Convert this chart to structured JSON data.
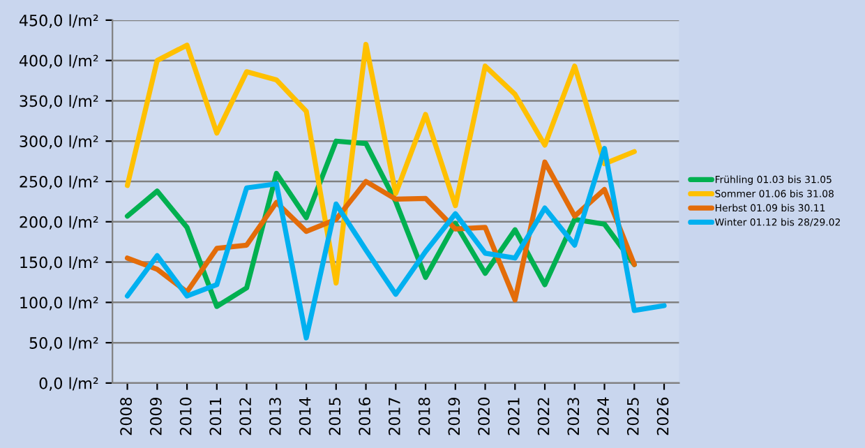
{
  "chart_data": {
    "type": "line",
    "categories": [
      "2008",
      "2009",
      "2010",
      "2011",
      "2012",
      "2013",
      "2014",
      "2015",
      "2016",
      "2017",
      "2018",
      "2019",
      "2020",
      "2021",
      "2022",
      "2023",
      "2024",
      "2025",
      "2026"
    ],
    "series": [
      {
        "name": "Frühling 01.03 bis 31.05",
        "color": "#00b050",
        "values": [
          207,
          238,
          193,
          95,
          118,
          260,
          205,
          300,
          297,
          225,
          131,
          198,
          136,
          190,
          122,
          203,
          197,
          147,
          null
        ]
      },
      {
        "name": "Sommer 01.06 bis 31.08",
        "color": "#ffc000",
        "values": [
          245,
          400,
          419,
          310,
          386,
          376,
          337,
          124,
          420,
          235,
          333,
          220,
          393,
          358,
          295,
          393,
          272,
          287,
          null
        ]
      },
      {
        "name": "Herbst 01.09 bis 30.11",
        "color": "#e36c09",
        "values": [
          155,
          141,
          113,
          167,
          171,
          224,
          188,
          203,
          250,
          228,
          229,
          191,
          193,
          103,
          274,
          207,
          240,
          147,
          null
        ]
      },
      {
        "name": "Winter 01.12 bis 28/29.02",
        "color": "#00b0f0",
        "values": [
          108,
          158,
          108,
          122,
          242,
          247,
          56,
          222,
          165,
          110,
          163,
          210,
          161,
          155,
          217,
          171,
          291,
          90,
          96
        ]
      }
    ],
    "ylim": [
      0,
      450
    ],
    "yticks": [
      {
        "value": 0,
        "label": "0,0 l/m²"
      },
      {
        "value": 50,
        "label": "50,0 l/m²"
      },
      {
        "value": 100,
        "label": "100,0 l/m²"
      },
      {
        "value": 150,
        "label": "150,0 l/m²"
      },
      {
        "value": 200,
        "label": "200,0 l/m²"
      },
      {
        "value": 250,
        "label": "250,0 l/m²"
      },
      {
        "value": 300,
        "label": "300,0 l/m²"
      },
      {
        "value": 350,
        "label": "350,0 l/m²"
      },
      {
        "value": 400,
        "label": "400,0 l/m²"
      },
      {
        "value": 450,
        "label": "450,0 l/m²"
      }
    ],
    "grid": "y",
    "legend": "right",
    "marker": "none",
    "line_style": "solid"
  }
}
